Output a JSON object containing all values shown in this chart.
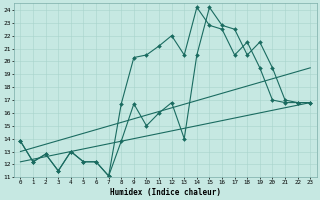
{
  "xlabel": "Humidex (Indice chaleur)",
  "xlim": [
    -0.5,
    23.5
  ],
  "ylim": [
    11,
    24.5
  ],
  "xticks": [
    0,
    1,
    2,
    3,
    4,
    5,
    6,
    7,
    8,
    9,
    10,
    11,
    12,
    13,
    14,
    15,
    16,
    17,
    18,
    19,
    20,
    21,
    22,
    23
  ],
  "yticks": [
    11,
    12,
    13,
    14,
    15,
    16,
    17,
    18,
    19,
    20,
    21,
    22,
    23,
    24
  ],
  "bg_color": "#c6e8e2",
  "grid_color": "#a8d4cc",
  "line_color": "#1a6b60",
  "line1_x": [
    0,
    1,
    2,
    3,
    4,
    5,
    6,
    7,
    8,
    9,
    10,
    11,
    12,
    13,
    14,
    15,
    16,
    17,
    18,
    19,
    20,
    21,
    22,
    23
  ],
  "line1_y": [
    13.8,
    12.2,
    12.8,
    11.5,
    13.0,
    12.2,
    12.2,
    11.1,
    16.7,
    20.3,
    20.5,
    21.2,
    22.0,
    20.5,
    24.2,
    22.8,
    22.5,
    20.5,
    21.5,
    19.5,
    17.0,
    16.8,
    16.8,
    16.8
  ],
  "line2_x": [
    0,
    1,
    2,
    3,
    4,
    5,
    6,
    7,
    8,
    9,
    10,
    11,
    12,
    13,
    14,
    15,
    16,
    17,
    18,
    19,
    20,
    21,
    22,
    23
  ],
  "line2_y": [
    13.8,
    12.2,
    12.8,
    11.5,
    13.0,
    12.2,
    12.2,
    11.1,
    13.8,
    16.7,
    15.0,
    16.0,
    16.8,
    14.0,
    20.5,
    24.2,
    22.8,
    22.5,
    20.5,
    21.5,
    19.5,
    17.0,
    16.8,
    16.8
  ],
  "line3_x": [
    0,
    23
  ],
  "line3_y": [
    13.0,
    19.5
  ],
  "line4_x": [
    0,
    23
  ],
  "line4_y": [
    12.2,
    16.8
  ]
}
